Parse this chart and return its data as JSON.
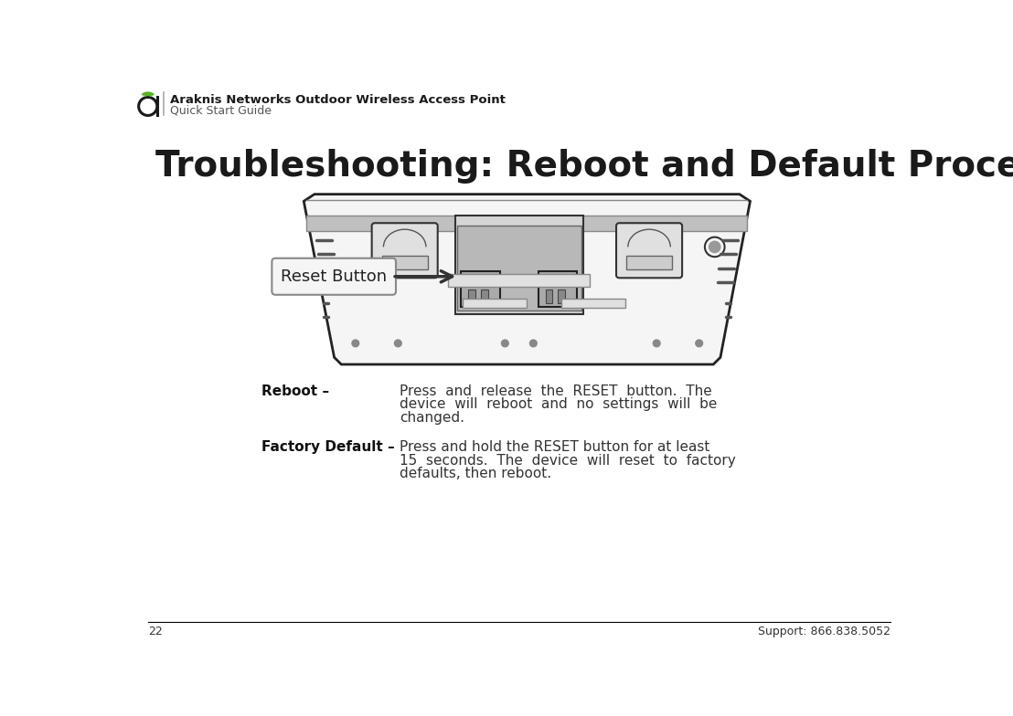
{
  "bg_color": "#ffffff",
  "header_title": "Araknis Networks Outdoor Wireless Access Point",
  "header_subtitle": "Quick Start Guide",
  "main_title": "Troubleshooting: Reboot and Default Procedures",
  "reboot_label": "Reboot –",
  "reboot_text_line1": "Press  and  release  the  RESET  button.  The",
  "reboot_text_line2": "device  will  reboot  and  no  settings  will  be",
  "reboot_text_line3": "changed.",
  "factory_label": "Factory Default –",
  "factory_text_line1": "Press and hold the RESET button for at least",
  "factory_text_line2": "15  seconds.  The  device  will  reset  to  factory",
  "factory_text_line3": "defaults, then reboot.",
  "page_number": "22",
  "support_text": "Support: 866.838.5052",
  "reset_button_label": "Reset Button",
  "footer_line_color": "#000000",
  "title_color": "#1a1a1a",
  "text_color": "#333333",
  "label_color": "#111111",
  "device_body_color": "#f5f5f5",
  "device_edge_color": "#222222",
  "device_dark_strip": "#d8d8d8",
  "port_bg_color": "#c8c8c8",
  "port_dark_color": "#888888",
  "bracket_color": "#e8e8e8",
  "reset_box_bg": "#f0f0f0",
  "arrow_color": "#333333"
}
